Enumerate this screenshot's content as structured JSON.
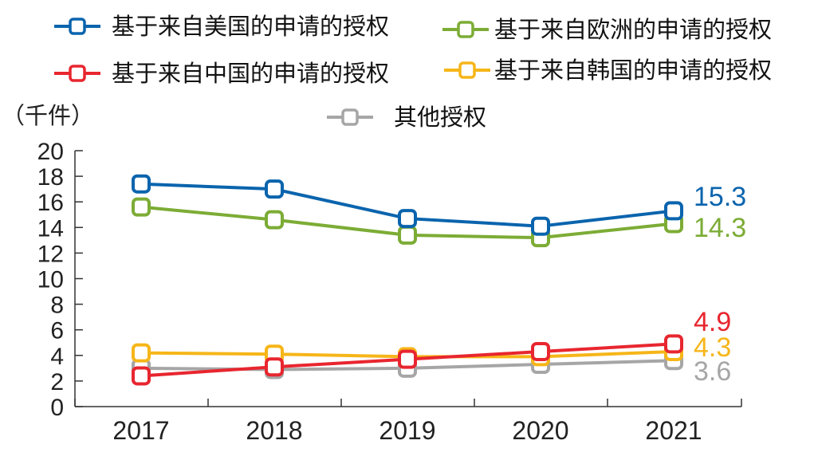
{
  "chart_data": {
    "type": "line",
    "unit_label": "（千件）",
    "categories": [
      "2017",
      "2018",
      "2019",
      "2020",
      "2021"
    ],
    "ylim": [
      0,
      20
    ],
    "yticks": [
      0,
      2,
      4,
      6,
      8,
      10,
      12,
      14,
      16,
      18,
      20
    ],
    "grid": false,
    "legend_position": "top",
    "series": [
      {
        "name": "基于来自美国的申请的授权",
        "color": "#0a64ad",
        "values": [
          17.4,
          17.0,
          14.7,
          14.1,
          15.3
        ],
        "end_label": "15.3"
      },
      {
        "name": "基于来自欧洲的申请的授权",
        "color": "#7cac35",
        "values": [
          15.6,
          14.6,
          13.4,
          13.2,
          14.3
        ],
        "end_label": "14.3"
      },
      {
        "name": "基于来自中国的申请的授权",
        "color": "#e8262f",
        "values": [
          2.4,
          3.1,
          3.7,
          4.3,
          4.9
        ],
        "end_label": "4.9"
      },
      {
        "name": "基于来自韩国的申请的授权",
        "color": "#f6b619",
        "values": [
          4.2,
          4.1,
          3.9,
          3.9,
          4.3
        ],
        "end_label": "4.3"
      },
      {
        "name": "其他授权",
        "color": "#a6a6a6",
        "values": [
          3.0,
          2.9,
          3.0,
          3.3,
          3.6
        ],
        "end_label": "3.6"
      }
    ]
  }
}
